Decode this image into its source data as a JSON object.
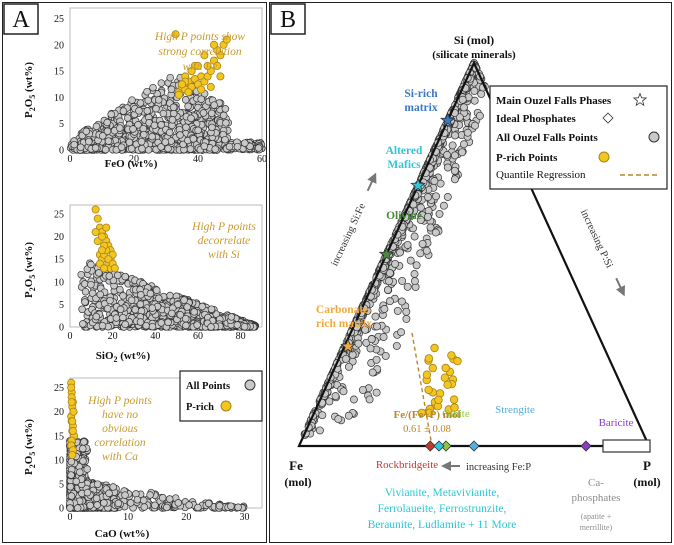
{
  "panel_labels": {
    "left": "A",
    "right": "B"
  },
  "colors": {
    "gray_point": "#c9c9c9",
    "p_rich": "#f2c521",
    "annotation_gold": "#c99a2e",
    "si_rich": "#3a78c6",
    "altered_mafics": "#33c6d6",
    "olivine": "#4a8a3c",
    "carbonate": "#f2a93b",
    "rockbridgeite": "#c43a2a",
    "ginite": "#8cc63f",
    "strengite": "#55aee0",
    "baricite": "#8a3cc4",
    "vivianite_group": "#2bc8d8",
    "ca_phosphates": "#8c8c8c",
    "regression": "#b8862b"
  },
  "chart_data": [
    {
      "type": "scatter",
      "xlabel": "FeO (wt%)",
      "ylabel": "P2O5 (wt%)",
      "xlim": [
        0,
        60
      ],
      "ylim": [
        0,
        27
      ],
      "xticks": [
        0,
        20,
        40,
        60
      ],
      "yticks": [
        0,
        5,
        10,
        15,
        20,
        25
      ],
      "annotation": [
        "High P points show",
        "strong correlation",
        "with Fe"
      ],
      "series": [
        {
          "name": "All Points",
          "note": "dense gray cloud 0-48 FeO, 0-15 P2O5"
        },
        {
          "name": "P-rich",
          "x": [
            34,
            35,
            36,
            37,
            38,
            36,
            39,
            40,
            41,
            38,
            42,
            37,
            39,
            43,
            44,
            45,
            46,
            47,
            48,
            41,
            44,
            46,
            49,
            36,
            38,
            40,
            35,
            42,
            45,
            33,
            34,
            47,
            43
          ],
          "y": [
            11,
            12,
            11.5,
            13,
            12,
            14,
            13.5,
            12.5,
            14,
            15,
            13,
            11,
            16,
            14,
            15,
            17,
            16,
            18,
            20,
            11.5,
            12,
            19,
            21,
            13,
            15,
            16,
            12.5,
            18,
            20,
            22,
            10.5,
            14,
            16
          ]
        }
      ]
    },
    {
      "type": "scatter",
      "xlabel": "SiO2 (wt%)",
      "ylabel": "P2O5 (wt%)",
      "xlim": [
        0,
        90
      ],
      "ylim": [
        0,
        27
      ],
      "xticks": [
        0,
        20,
        40,
        60,
        80
      ],
      "yticks": [
        0,
        5,
        10,
        15,
        20,
        25
      ],
      "annotation": [
        "High P points",
        "decorrelate",
        "with Si"
      ],
      "series": [
        {
          "name": "All Points",
          "note": "gray cloud 5-90 SiO2, decreasing from 15 to 0"
        },
        {
          "name": "P-rich",
          "x": [
            12,
            13,
            14,
            15,
            16,
            17,
            18,
            19,
            14,
            15,
            16,
            17,
            18,
            19,
            20,
            16,
            13,
            15,
            17,
            19,
            14,
            16,
            18,
            20,
            15,
            12,
            21
          ],
          "y": [
            26,
            24,
            22,
            21,
            20,
            19,
            18,
            17,
            16,
            15,
            16,
            17,
            14,
            15,
            16,
            18,
            19,
            20,
            22,
            13,
            14,
            13,
            15,
            14,
            17,
            21,
            13
          ]
        }
      ]
    },
    {
      "type": "scatter",
      "xlabel": "CaO (wt%)",
      "ylabel": "P2O5 (wt%)",
      "xlim": [
        0,
        33
      ],
      "ylim": [
        0,
        27
      ],
      "xticks": [
        0,
        10,
        20,
        30
      ],
      "yticks": [
        0,
        5,
        10,
        15,
        20,
        25
      ],
      "annotation": [
        "High P points",
        "have no",
        "obvious",
        "correlation",
        "with Ca"
      ],
      "series": [
        {
          "name": "All Points",
          "note": "gray cloud concentrated at CaO < 5, scattered to 30"
        },
        {
          "name": "P-rich",
          "x": [
            0.2,
            0.3,
            0.5,
            0.4,
            0.6,
            0.2,
            0.3,
            0.5,
            0.4,
            0.7,
            0.3,
            0.2,
            0.5,
            0.4,
            0.6,
            0.3,
            0.5,
            0.4,
            0.2,
            0.3
          ],
          "y": [
            26,
            24,
            22,
            21,
            20,
            19,
            18,
            17,
            16,
            15,
            14,
            13,
            12,
            11,
            20,
            23,
            16,
            18,
            25,
            22
          ]
        }
      ]
    },
    {
      "type": "ternary",
      "apices": {
        "top": [
          "Si (mol)",
          "(silicate minerals)"
        ],
        "left": [
          "Fe",
          "(mol)"
        ],
        "right": [
          "P",
          "(mol)"
        ]
      },
      "axis_notes": {
        "left_edge": "increasing Si:Fe",
        "right_edge": "increasing P:Si",
        "bottom_edge": "increasing Fe:P"
      },
      "legend": [
        {
          "label": "Main Ouzel Falls Phases",
          "marker": "star"
        },
        {
          "label": "Ideal Phosphates",
          "marker": "diamond"
        },
        {
          "label": "All Ouzel Falls Points",
          "marker": "gray-circle"
        },
        {
          "label": "P-rich Points",
          "marker": "yellow-circle"
        },
        {
          "label": "Quantile Regression",
          "marker": "dashed-line"
        }
      ],
      "phases": [
        {
          "label": [
            "Si-rich",
            "matrix"
          ],
          "color_key": "si_rich",
          "si": 0.85,
          "fe": 0.15,
          "p": 0.0
        },
        {
          "label": [
            "Altered",
            "Mafics"
          ],
          "color_key": "altered_mafics",
          "si": 0.68,
          "fe": 0.32,
          "p": 0.0
        },
        {
          "label": [
            "Olivine"
          ],
          "color_key": "olivine",
          "si": 0.5,
          "fe": 0.5,
          "p": 0.0
        },
        {
          "label": [
            "Carbonate-",
            "rich matrix"
          ],
          "color_key": "carbonate",
          "si": 0.26,
          "fe": 0.73,
          "p": 0.01
        }
      ],
      "ideal_phosphates": [
        {
          "label": "Rockbridgeite",
          "color_key": "rockbridgeite",
          "fe_fraction": 0.625
        },
        {
          "label": "Ginite",
          "color_key": "ginite",
          "fe_fraction": 0.58
        },
        {
          "label": "Strengite",
          "color_key": "strengite",
          "fe_fraction": 0.5
        },
        {
          "label": "Baricite",
          "color_key": "baricite",
          "fe_fraction": 0.18
        },
        {
          "label": [
            "Vivianite, Metavivianite,",
            "Ferrolaueite, Ferrostrunzite,",
            "Beraunite, Ludlamite + 11 More"
          ],
          "color_key": "vivianite_group",
          "fe_fraction": 0.6
        }
      ],
      "ca_phosphates": {
        "label": [
          "Ca-",
          "phosphates"
        ],
        "sublabel": [
          "(apatite +",
          "merrillite)"
        ]
      },
      "regression": {
        "label": "Fe/(Fe+P) mol",
        "value": "0.61 ± 0.08"
      }
    }
  ]
}
